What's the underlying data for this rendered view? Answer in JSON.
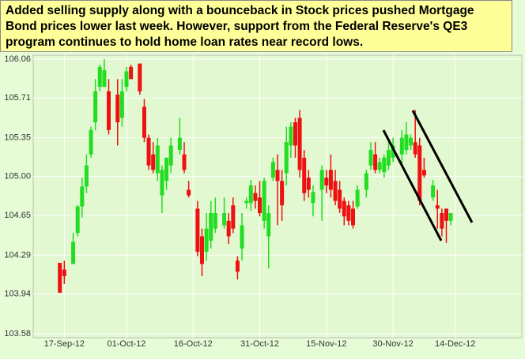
{
  "chart_data": {
    "type": "candlestick",
    "annotation": [
      "Added selling supply along with a bounceback in Stock prices pushed Mortgage",
      "Bond prices lower last week.  However, support from the Federal Reserve's QE3",
      "program continues to hold home loan rates near record lows."
    ],
    "up_color": "#22dd22",
    "down_color": "#ee1111",
    "grid": true,
    "ylim": [
      103.58,
      106.06
    ],
    "yticks": [
      103.58,
      103.94,
      104.29,
      104.65,
      {
        "value": 105,
        "label": "105.00"
      },
      105.35,
      105.71,
      106.06
    ],
    "xlim": [
      "2012-09-10",
      "2012-12-29"
    ],
    "xticks": [
      {
        "value": "2012-09-17",
        "label": "17-Sep-12"
      },
      {
        "value": "2012-10-01",
        "label": "01-Oct-12"
      },
      {
        "value": "2012-10-16",
        "label": "16-Oct-12"
      },
      {
        "value": "2012-10-31",
        "label": "31-Oct-12"
      },
      {
        "value": "2012-11-15",
        "label": "15-Nov-12"
      },
      {
        "value": "2012-11-30",
        "label": "30-Nov-12"
      },
      {
        "value": "2012-12-14",
        "label": "14-Dec-12"
      }
    ],
    "x": [
      "2012-09-16",
      "2012-09-17",
      "2012-09-19",
      "2012-09-20",
      "2012-09-21",
      "2012-09-22",
      "2012-09-23",
      "2012-09-24",
      "2012-09-25",
      "2012-09-26",
      "2012-09-27",
      "2012-09-29",
      "2012-09-30",
      "2012-10-01",
      "2012-10-02",
      "2012-10-04",
      "2012-10-05",
      "2012-10-06",
      "2012-10-07",
      "2012-10-08",
      "2012-10-09",
      "2012-10-10",
      "2012-10-11",
      "2012-10-13",
      "2012-10-14",
      "2012-10-15",
      "2012-10-17",
      "2012-10-18",
      "2012-10-19",
      "2012-10-20",
      "2012-10-21",
      "2012-10-23",
      "2012-10-24",
      "2012-10-25",
      "2012-10-26",
      "2012-10-27",
      "2012-10-28",
      "2012-10-29",
      "2012-10-30",
      "2012-10-31",
      "2012-11-01",
      "2012-11-02",
      "2012-11-03",
      "2012-11-04",
      "2012-11-05",
      "2012-11-06",
      "2012-11-07",
      "2012-11-08",
      "2012-11-09",
      "2012-11-10",
      "2012-11-11",
      "2012-11-12",
      "2012-11-14",
      "2012-11-15",
      "2012-11-16",
      "2012-11-17",
      "2012-11-18",
      "2012-11-19",
      "2012-11-20",
      "2012-11-21",
      "2012-11-22",
      "2012-11-24",
      "2012-11-25",
      "2012-11-26",
      "2012-11-27",
      "2012-11-28",
      "2012-11-29",
      "2012-11-30",
      "2012-12-02",
      "2012-12-03",
      "2012-12-04",
      "2012-12-05",
      "2012-12-06",
      "2012-12-07",
      "2012-12-09",
      "2012-12-10",
      "2012-12-11",
      "2012-12-12",
      "2012-12-13"
    ],
    "open": [
      104.22,
      104.16,
      104.21,
      104.49,
      104.73,
      104.91,
      105.2,
      105.49,
      105.81,
      105.81,
      105.77,
      105.74,
      105.53,
      105.81,
      105.99,
      106.02,
      105.63,
      105.35,
      105.2,
      105.03,
      104.83,
      104.96,
      105.1,
      105.24,
      105.2,
      104.88,
      104.71,
      104.46,
      104.32,
      104.42,
      104.53,
      104.56,
      104.6,
      104.74,
      104.24,
      104.35,
      104.76,
      104.76,
      104.85,
      104.81,
      104.6,
      104.46,
      104.99,
      105.06,
      104.96,
      105.03,
      105.28,
      105.49,
      105.53,
      105.17,
      104.99,
      104.76,
      104.88,
      104.99,
      105.06,
      104.96,
      104.88,
      104.78,
      104.74,
      104.71,
      104.73,
      104.88,
      105.1,
      105.2,
      105.06,
      105.04,
      105.1,
      105.17,
      105.2,
      105.24,
      105.28,
      105.31,
      105.28,
      105.06,
      104.81,
      104.74,
      104.67,
      104.71,
      104.6
    ],
    "high": [
      104.22,
      104.24,
      104.49,
      104.74,
      104.99,
      105.2,
      105.45,
      105.88,
      106.01,
      106.06,
      105.88,
      105.88,
      105.88,
      105.99,
      106.01,
      106.02,
      105.7,
      105.38,
      105.31,
      105.35,
      105.1,
      105.17,
      105.35,
      105.53,
      105.31,
      104.96,
      104.78,
      104.53,
      104.67,
      104.78,
      104.81,
      104.81,
      104.67,
      104.81,
      104.28,
      104.67,
      104.81,
      104.97,
      104.92,
      104.96,
      104.99,
      104.74,
      105.17,
      105.2,
      105.06,
      105.45,
      105.49,
      105.53,
      105.6,
      105.24,
      105.06,
      104.92,
      105.1,
      105.06,
      105.2,
      105.06,
      104.96,
      104.81,
      104.78,
      104.78,
      104.92,
      105.06,
      105.31,
      105.31,
      105.17,
      105.2,
      105.31,
      105.35,
      105.42,
      105.49,
      105.38,
      105.6,
      105.35,
      105.17,
      104.97,
      104.88,
      104.71,
      104.71,
      104.67
    ],
    "low": [
      103.95,
      104.03,
      104.21,
      104.46,
      104.63,
      104.85,
      105.17,
      105.42,
      105.77,
      105.81,
      105.38,
      105.28,
      105.45,
      105.77,
      105.88,
      105.74,
      105.31,
      105.06,
      105.03,
      104.96,
      104.67,
      104.88,
      105.03,
      105.2,
      105.03,
      104.81,
      104.28,
      104.1,
      104.24,
      104.35,
      104.49,
      104.53,
      104.39,
      104.49,
      104.07,
      104.24,
      104.71,
      104.69,
      104.71,
      104.64,
      104.53,
      104.17,
      104.96,
      104.56,
      104.6,
      104.92,
      105.17,
      105.17,
      104.99,
      104.78,
      104.81,
      104.64,
      104.6,
      104.85,
      104.81,
      104.74,
      104.67,
      104.56,
      104.56,
      104.53,
      104.71,
      104.81,
      105.06,
      105.03,
      105.03,
      104.99,
      105.06,
      105.13,
      105.1,
      105.2,
      105.24,
      105.17,
      104.74,
      104.99,
      104.78,
      104.53,
      104.46,
      104.4,
      104.56
    ],
    "close": [
      103.95,
      104.1,
      104.41,
      104.73,
      104.91,
      105.1,
      105.42,
      105.77,
      105.99,
      105.96,
      105.42,
      105.49,
      105.77,
      105.95,
      105.88,
      105.77,
      105.35,
      105.1,
      105.06,
      105.28,
      105.06,
      105.17,
      105.28,
      105.35,
      105.06,
      104.83,
      104.32,
      104.21,
      104.53,
      104.67,
      104.67,
      104.67,
      104.46,
      104.53,
      104.14,
      104.56,
      104.78,
      104.92,
      104.78,
      104.67,
      104.96,
      104.67,
      105.13,
      104.96,
      104.74,
      105.31,
      105.45,
      105.28,
      105.06,
      104.85,
      104.88,
      104.86,
      105.06,
      104.92,
      104.88,
      104.78,
      104.71,
      104.64,
      104.6,
      104.56,
      104.88,
      105.03,
      105.24,
      105.06,
      105.13,
      105.17,
      105.24,
      105.28,
      105.35,
      105.38,
      105.35,
      105.2,
      104.78,
      105.01,
      104.92,
      104.71,
      104.53,
      104.6,
      104.67
    ]
  }
}
